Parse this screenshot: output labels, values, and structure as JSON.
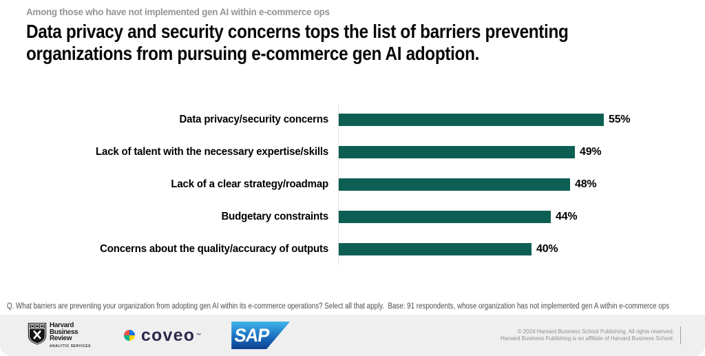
{
  "header": {
    "eyebrow": "Among those who have not implemented gen AI within e-commerce ops",
    "title_line1": "Data privacy and security concerns tops the list of barriers preventing",
    "title_line2": "organizations from pursuing e-commerce gen AI adoption."
  },
  "chart_data": {
    "type": "bar",
    "orientation": "horizontal",
    "title": "",
    "categories": [
      "Data privacy/security concerns",
      "Lack of talent with the necessary expertise/skills",
      "Lack of a clear strategy/roadmap",
      "Budgetary constraints",
      "Concerns about the quality/accuracy of outputs"
    ],
    "values": [
      55,
      49,
      48,
      44,
      40
    ],
    "value_labels": [
      "55%",
      "49%",
      "48%",
      "44%",
      "40%"
    ],
    "value_suffix": "%",
    "xlim": [
      0,
      57.5
    ],
    "grid": false,
    "legend": false,
    "bar_color": "#0d5f53",
    "axis_line_color": "#dcdcdc"
  },
  "footnote": "Q. What barriers are preventing your organization from adopting gen AI within its e-commerce operations? Select all that apply.  Base: 91 respondents, whose organization has not implemented gen A within e-commerce ops",
  "footer": {
    "hbr_logo": {
      "line1": "Harvard",
      "line2": "Business",
      "line3": "Review",
      "subtext": "ANALYTIC SERVICES"
    },
    "coveo_logo": {
      "text": "coveo",
      "trademark": "™",
      "colors": {
        "orange": "#f05245",
        "blue": "#1372ec",
        "yellow": "#ffd500",
        "green": "#00b388"
      },
      "text_color": "#2c2a4a"
    },
    "sap_logo": {
      "text": "SAP",
      "gradient_top": "#41b6ea",
      "gradient_bottom": "#0c3f8e"
    },
    "copyright_line1": "© 2024 Harvard Business School Publishing. All rights reserved.",
    "copyright_line2": "Harvard Business Publishing is an affiliate of Harvard Business School."
  }
}
